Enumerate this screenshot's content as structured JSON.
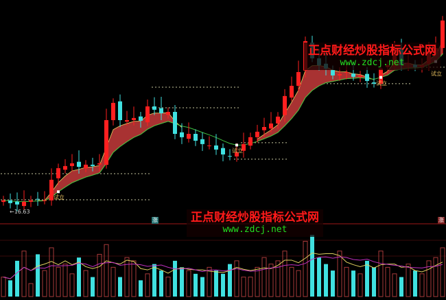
{
  "chart_data": {
    "type": "candlestick",
    "title": "",
    "colors": {
      "up": "#ff2020",
      "down": "#40e0e0",
      "ribbon": "#a83232",
      "ribbon_edge": "#e8d060",
      "ma_fast": "#e0d060",
      "ma_slow": "#c030c0",
      "divider": "#a01818",
      "level": "#c8c8a0"
    },
    "closes": [
      17.22,
      17.04,
      16.95,
      17.13,
      17.22,
      17.31,
      17.22,
      18.57,
      19.33,
      19.47,
      19.65,
      19.42,
      19.56,
      19.47,
      19.65,
      22.48,
      23.61,
      22.48,
      22.48,
      22.62,
      22.44,
      23.38,
      23.16,
      22.93,
      23.02,
      21.58,
      21.36,
      21.58,
      21.13,
      20.91,
      20.82,
      20.55,
      20.23,
      20.1,
      20.37,
      20.91,
      21.36,
      21.72,
      22.03,
      22.26,
      22.71,
      24.06,
      24.73,
      25.63,
      27.66,
      26.53,
      26.08,
      25.86,
      25.41,
      25.5,
      25.63,
      25.32,
      25.41,
      25.05,
      24.87,
      25.86,
      26.08,
      27.21,
      26.08,
      26.22,
      25.95,
      26.08,
      26.98,
      27.21,
      29.01
    ],
    "volumes": [
      30,
      25,
      55,
      70,
      20,
      65,
      40,
      75,
      45,
      50,
      35,
      60,
      40,
      30,
      65,
      80,
      45,
      30,
      60,
      55,
      25,
      35,
      50,
      40,
      30,
      55,
      45,
      40,
      35,
      30,
      45,
      40,
      35,
      50,
      55,
      30,
      30,
      45,
      60,
      50,
      55,
      70,
      45,
      40,
      85,
      95,
      60,
      50,
      40,
      70,
      45,
      40,
      35,
      55,
      45,
      70,
      45,
      35,
      30,
      50,
      40,
      35,
      55,
      60,
      75
    ],
    "support_levels": [
      {
        "price": 18.97,
        "from": 0,
        "to": 21
      },
      {
        "price": 17.26,
        "from": 0,
        "to": 21
      },
      {
        "price": 24.64,
        "from": 22,
        "to": 34
      },
      {
        "price": 23.29,
        "from": 22,
        "to": 34
      },
      {
        "price": 19.92,
        "from": 34,
        "to": 41
      },
      {
        "price": 21.0,
        "from": 35,
        "to": 41
      },
      {
        "price": 24.87,
        "from": 44,
        "to": 59
      },
      {
        "price": 25.95,
        "from": 60,
        "to": 64
      }
    ],
    "low_label": "←16.63",
    "signal_label": "试立",
    "signal_indices": [
      8,
      34,
      55,
      63
    ],
    "volume_markers": [
      {
        "text": "涨",
        "index": 22
      },
      {
        "text": "涨",
        "index": 64
      }
    ]
  },
  "watermark": {
    "title": "正点财经炒股指标公式网",
    "url": "www.zdcj.net"
  }
}
